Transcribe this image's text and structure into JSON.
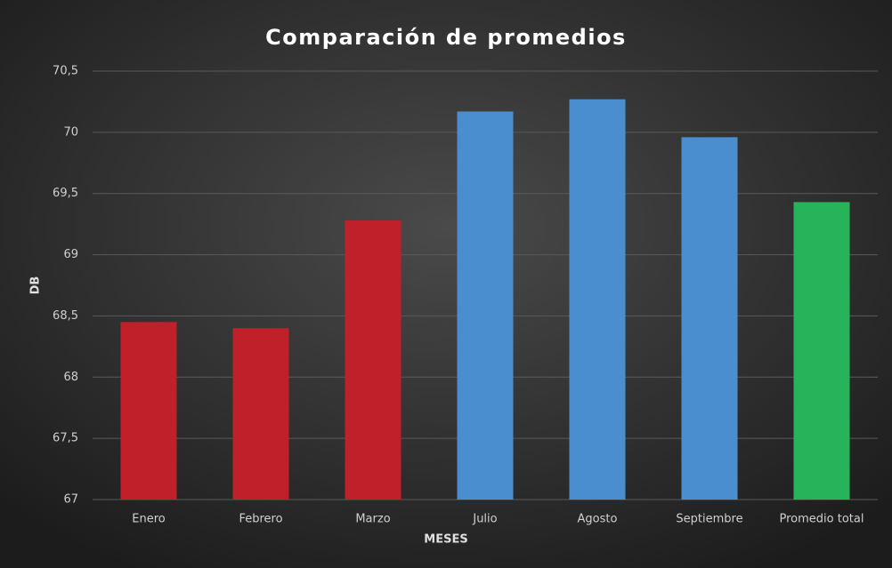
{
  "chart_data": {
    "type": "bar",
    "title": "Comparación de promedios",
    "x_label": "MESES",
    "y_label": "DB",
    "categories": [
      "Enero",
      "Febrero",
      "Marzo",
      "Julio",
      "Agosto",
      "Septiembre",
      "Promedio total"
    ],
    "values": [
      68.45,
      68.4,
      69.28,
      70.17,
      70.27,
      69.96,
      69.43
    ],
    "colors": [
      "#c0202a",
      "#c0202a",
      "#c0202a",
      "#4a8ed0",
      "#4a8ed0",
      "#4a8ed0",
      "#26b35a"
    ],
    "ylim": [
      67,
      70.5
    ],
    "yticks": [
      67,
      {
        "value": 67.5,
        "label": "67,5"
      },
      68,
      {
        "value": 68.5,
        "label": "68,5"
      },
      69,
      {
        "value": 69.5,
        "label": "69,5"
      },
      70,
      {
        "value": 70.5,
        "label": "70,5"
      }
    ],
    "grid": true
  }
}
